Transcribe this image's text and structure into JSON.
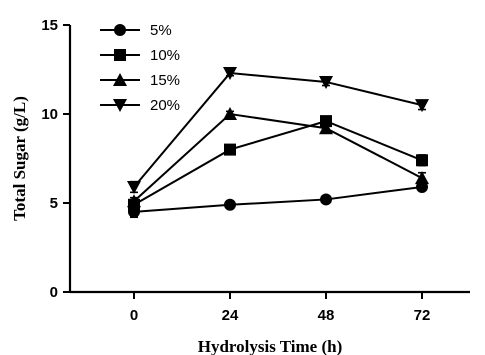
{
  "chart_data": {
    "type": "line",
    "xlabel": "Hydrolysis Time (h)",
    "ylabel": "Total Sugar (g/L)",
    "x": [
      0,
      24,
      48,
      72
    ],
    "xticks": [
      0,
      24,
      48,
      72
    ],
    "yticks": [
      0,
      5,
      10,
      15
    ],
    "xlim": [
      -16,
      84
    ],
    "ylim": [
      0,
      15
    ],
    "legend_position": "top-left",
    "series": [
      {
        "name": "5%",
        "marker": "circle",
        "values": [
          4.5,
          4.9,
          5.2,
          5.9
        ],
        "errors": [
          0.3,
          0.1,
          0.1,
          0.2
        ]
      },
      {
        "name": "10%",
        "marker": "square",
        "values": [
          4.9,
          8.0,
          9.6,
          7.4
        ],
        "errors": [
          0.2,
          0.2,
          0.2,
          0.3
        ]
      },
      {
        "name": "15%",
        "marker": "triangle-up",
        "values": [
          5.1,
          10.0,
          9.2,
          6.4
        ],
        "errors": [
          0.2,
          0.15,
          0.2,
          0.3
        ]
      },
      {
        "name": "20%",
        "marker": "triangle-down",
        "values": [
          5.9,
          12.3,
          11.8,
          10.5
        ],
        "errors": [
          0.3,
          0.15,
          0.2,
          0.25
        ]
      }
    ]
  }
}
